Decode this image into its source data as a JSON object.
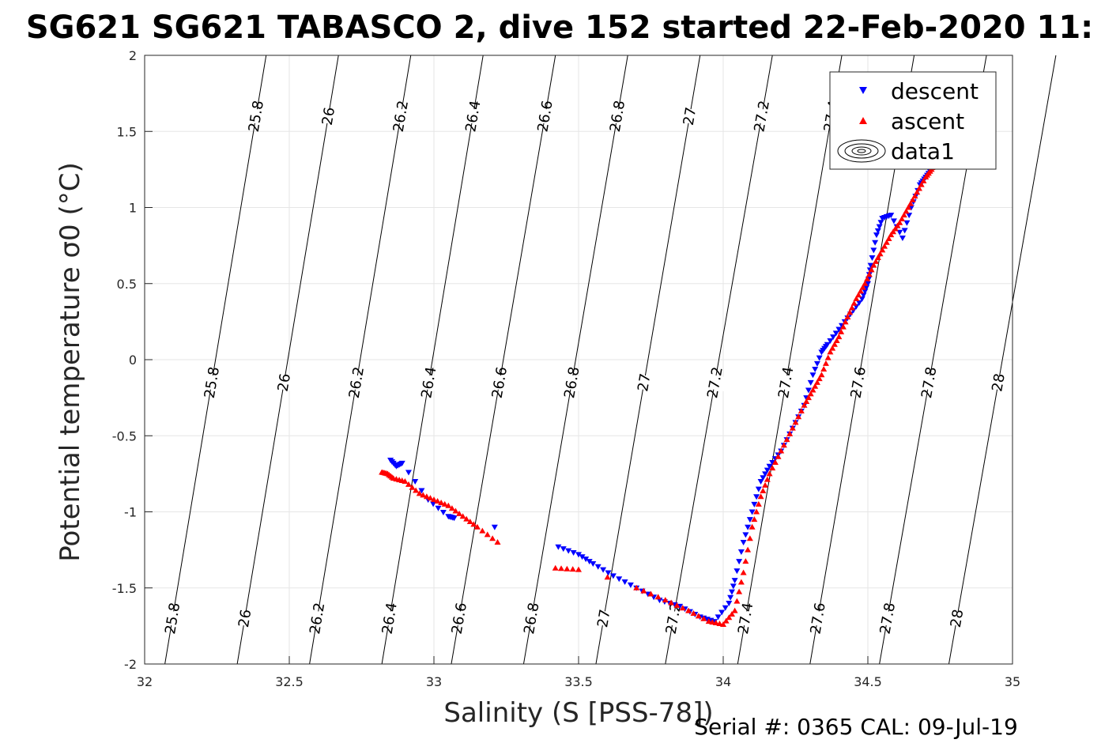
{
  "chart_data": {
    "type": "scatter",
    "title": "SG621 SG621 TABASCO 2, dive 152 started 22-Feb-2020 11:",
    "xlabel": "Salinity (S [PSS-78])",
    "ylabel": "Potential temperature σ0 (°C)",
    "xlim": [
      32,
      35
    ],
    "ylim": [
      -2,
      2
    ],
    "xticks": [
      32,
      32.5,
      33,
      33.5,
      34,
      34.5,
      35
    ],
    "yticks": [
      -2,
      -1.5,
      -1,
      -0.5,
      0,
      0.5,
      1,
      1.5,
      2
    ],
    "xtick_labels": [
      "32",
      "32.5",
      "33",
      "33.5",
      "34",
      "34.5",
      "35"
    ],
    "ytick_labels": [
      "-2",
      "-1.5",
      "-1",
      "-0.5",
      "0",
      "0.5",
      "1",
      "1.5",
      "2"
    ],
    "grid": true,
    "legend_position": "top-right",
    "density_contours": [
      {
        "level": "25.8",
        "bottom": [
          32.07,
          -2
        ],
        "top": [
          32.42,
          2
        ]
      },
      {
        "level": "26",
        "bottom": [
          32.32,
          -2
        ],
        "top": [
          32.67,
          2
        ]
      },
      {
        "level": "26.2",
        "bottom": [
          32.57,
          -2
        ],
        "top": [
          32.92,
          2
        ]
      },
      {
        "level": "26.4",
        "bottom": [
          32.82,
          -2
        ],
        "top": [
          33.17,
          2
        ]
      },
      {
        "level": "26.6",
        "bottom": [
          33.06,
          -2
        ],
        "top": [
          33.42,
          2
        ]
      },
      {
        "level": "26.8",
        "bottom": [
          33.31,
          -2
        ],
        "top": [
          33.67,
          2
        ]
      },
      {
        "level": "27",
        "bottom": [
          33.56,
          -2
        ],
        "top": [
          33.92,
          2
        ]
      },
      {
        "level": "27.2",
        "bottom": [
          33.8,
          -2
        ],
        "top": [
          34.17,
          2
        ]
      },
      {
        "level": "27.4",
        "bottom": [
          34.05,
          -2
        ],
        "top": [
          34.41,
          2
        ]
      },
      {
        "level": "27.6",
        "bottom": [
          34.3,
          -2
        ],
        "top": [
          34.66,
          2
        ]
      },
      {
        "level": "27.8",
        "bottom": [
          34.54,
          -2
        ],
        "top": [
          34.91,
          2
        ]
      },
      {
        "level": "28",
        "bottom": [
          34.78,
          -2
        ],
        "top": [
          35.15,
          2
        ]
      }
    ],
    "series": [
      {
        "name": "descent",
        "marker": "triangle-down",
        "color": "#0000ff",
        "x": [
          32.85,
          32.87,
          32.89,
          32.98,
          33.05,
          33.07,
          33.21,
          33.43,
          33.5,
          33.55,
          33.62,
          33.7,
          33.78,
          33.85,
          33.92,
          33.97,
          34.02,
          34.04,
          34.07,
          34.1,
          34.13,
          34.16,
          34.2,
          34.24,
          34.28,
          34.31,
          34.34,
          34.36,
          34.4,
          34.44,
          34.48,
          34.5,
          34.51,
          34.53,
          34.55,
          34.58,
          34.62,
          34.65,
          34.68,
          34.7,
          34.72,
          34.73
        ],
        "y": [
          -0.66,
          -0.7,
          -0.68,
          -0.92,
          -1.03,
          -1.04,
          -1.1,
          -1.23,
          -1.28,
          -1.34,
          -1.42,
          -1.5,
          -1.58,
          -1.62,
          -1.69,
          -1.72,
          -1.6,
          -1.45,
          -1.2,
          -1.0,
          -0.8,
          -0.7,
          -0.6,
          -0.45,
          -0.3,
          -0.1,
          0.05,
          0.1,
          0.2,
          0.3,
          0.4,
          0.5,
          0.62,
          0.82,
          0.93,
          0.95,
          0.8,
          1.0,
          1.15,
          1.2,
          1.25,
          1.3
        ]
      },
      {
        "name": "ascent",
        "marker": "triangle-up",
        "color": "#ff0000",
        "x": [
          32.82,
          32.84,
          32.86,
          32.9,
          32.95,
          33.0,
          33.05,
          33.1,
          33.15,
          33.22,
          33.42,
          33.5,
          33.6,
          33.7,
          33.8,
          33.88,
          33.95,
          34.0,
          34.04,
          34.07,
          34.1,
          34.13,
          34.16,
          34.2,
          34.24,
          34.28,
          34.31,
          34.34,
          34.37,
          34.4,
          34.43,
          34.46,
          34.49,
          34.52,
          34.55,
          34.58,
          34.61,
          34.64,
          34.67,
          34.7,
          34.72,
          34.73
        ],
        "y": [
          -0.74,
          -0.75,
          -0.78,
          -0.8,
          -0.88,
          -0.92,
          -0.96,
          -1.03,
          -1.1,
          -1.2,
          -1.37,
          -1.38,
          -1.43,
          -1.5,
          -1.58,
          -1.65,
          -1.72,
          -1.74,
          -1.65,
          -1.4,
          -1.1,
          -0.9,
          -0.75,
          -0.6,
          -0.45,
          -0.3,
          -0.2,
          -0.1,
          0.05,
          0.15,
          0.28,
          0.4,
          0.5,
          0.62,
          0.72,
          0.82,
          0.9,
          1.0,
          1.1,
          1.2,
          1.25,
          1.3
        ]
      }
    ],
    "legend": [
      "descent",
      "ascent",
      "data1"
    ]
  },
  "footer": {
    "serial_text": "Serial #: 0365  CAL: 09-Jul-19"
  }
}
